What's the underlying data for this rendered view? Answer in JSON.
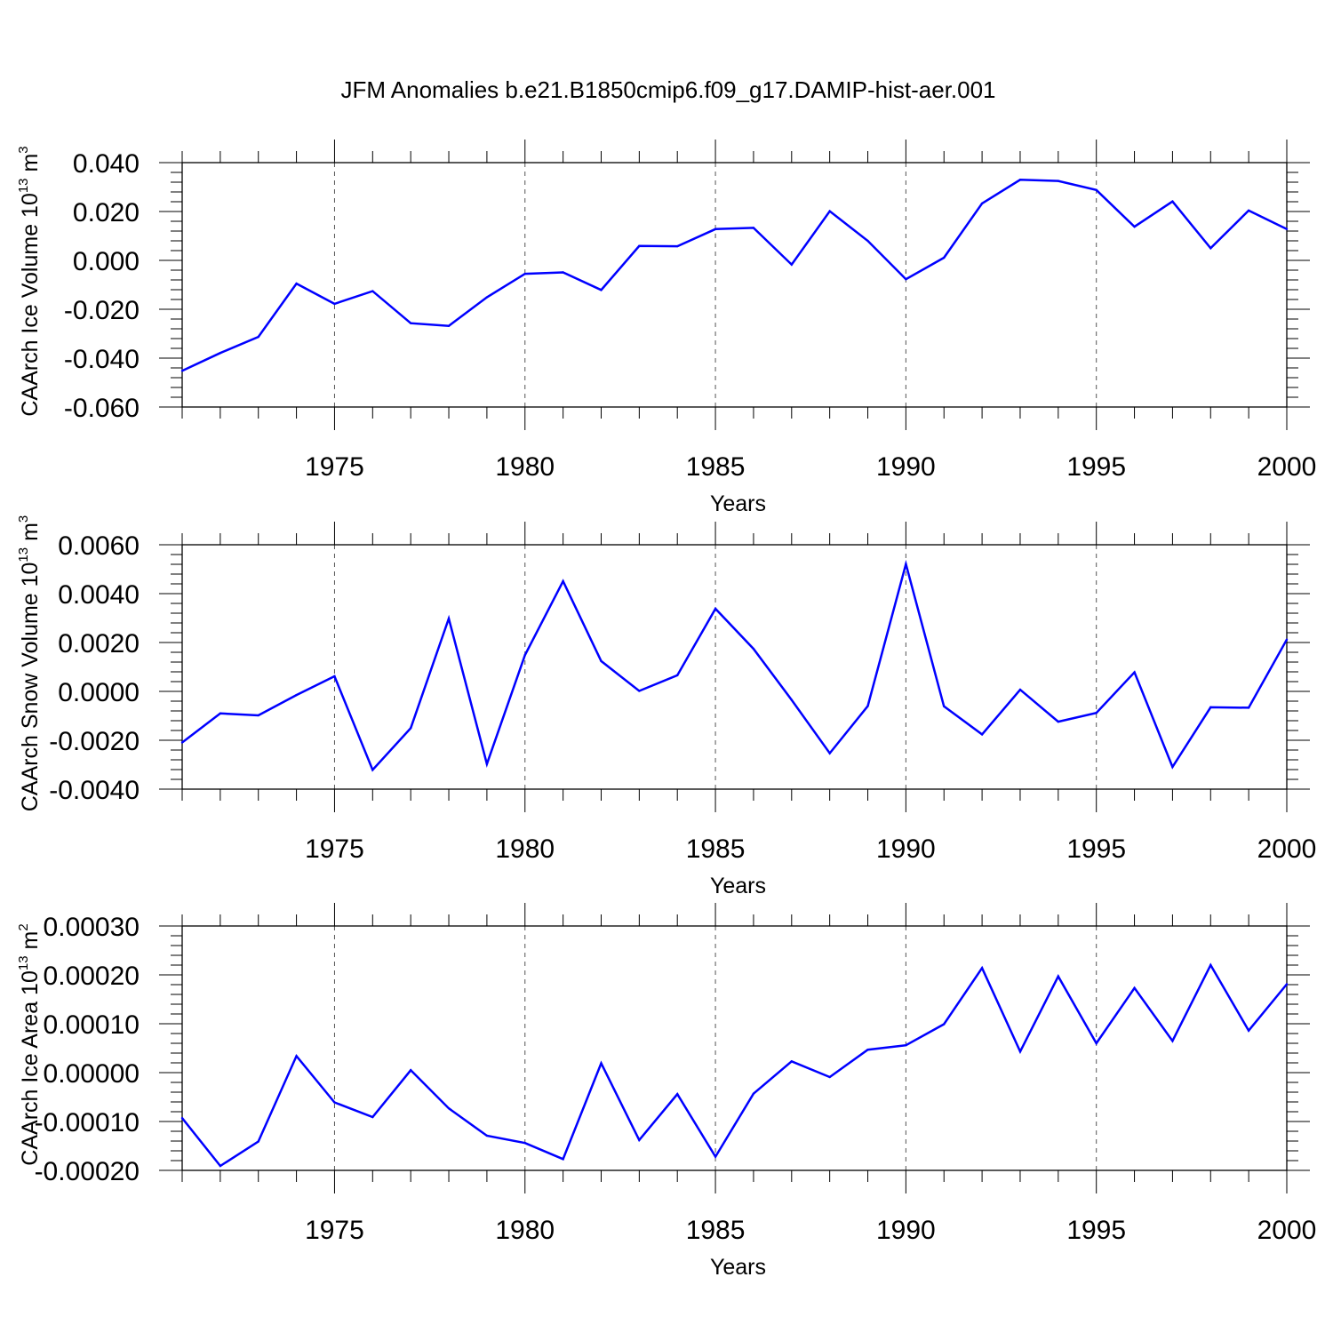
{
  "figure": {
    "title": "JFM Anomalies b.e21.B1850cmip6.f09_g17.DAMIP-hist-aer.001",
    "line_color": "#0000ff",
    "grid_color": "#555555"
  },
  "chart_data": [
    {
      "type": "line",
      "title": "JFM Anomalies b.e21.B1850cmip6.f09_g17.DAMIP-hist-aer.001",
      "xlabel": "Years",
      "ylabel_main": "CAArch Ice Volume 10",
      "ylabel_sup": "13",
      "ylabel_unit": " m",
      "ylabel_unit_sup": "3",
      "xlim": [
        1971,
        2000
      ],
      "ylim": [
        -0.06,
        0.04
      ],
      "x_ticks": [
        1975,
        1980,
        1985,
        1990,
        1995,
        2000
      ],
      "x_tick_labels": [
        "1975",
        "1980",
        "1985",
        "1990",
        "1995",
        "2000"
      ],
      "y_ticks": [
        -0.06,
        -0.04,
        -0.02,
        0.0,
        0.02,
        0.04
      ],
      "y_tick_labels": [
        "-0.060",
        "-0.040",
        "-0.020",
        "0.000",
        "0.020",
        "0.040"
      ],
      "x": [
        1971,
        1972,
        1973,
        1974,
        1975,
        1976,
        1977,
        1978,
        1979,
        1980,
        1981,
        1982,
        1983,
        1984,
        1985,
        1986,
        1987,
        1988,
        1989,
        1990,
        1991,
        1992,
        1993,
        1994,
        1995,
        1996,
        1997,
        1998,
        1999,
        2000
      ],
      "values": [
        -0.0452,
        -0.0379,
        -0.0313,
        -0.0095,
        -0.0178,
        -0.0126,
        -0.0257,
        -0.0268,
        -0.0151,
        -0.0055,
        -0.0049,
        -0.0121,
        0.0059,
        0.0058,
        0.0128,
        0.0133,
        -0.0017,
        0.0201,
        0.008,
        -0.0077,
        0.0011,
        0.0233,
        0.033,
        0.0325,
        0.0288,
        0.0138,
        0.0241,
        0.005,
        0.0204,
        0.0128
      ],
      "series_name": "CAArch Ice Volume"
    },
    {
      "type": "line",
      "xlabel": "Years",
      "ylabel_main": "CAArch Snow Volume 10",
      "ylabel_sup": "13",
      "ylabel_unit": " m",
      "ylabel_unit_sup": "3",
      "xlim": [
        1971,
        2000
      ],
      "ylim": [
        -0.004,
        0.006
      ],
      "x_ticks": [
        1975,
        1980,
        1985,
        1990,
        1995,
        2000
      ],
      "x_tick_labels": [
        "1975",
        "1980",
        "1985",
        "1990",
        "1995",
        "2000"
      ],
      "y_ticks": [
        -0.004,
        -0.002,
        0.0,
        0.002,
        0.004,
        0.006
      ],
      "y_tick_labels": [
        "-0.0040",
        "-0.0020",
        "0.0000",
        "0.0020",
        "0.0040",
        "0.0060"
      ],
      "x": [
        1971,
        1972,
        1973,
        1974,
        1975,
        1976,
        1977,
        1978,
        1979,
        1980,
        1981,
        1982,
        1983,
        1984,
        1985,
        1986,
        1987,
        1988,
        1989,
        1990,
        1991,
        1992,
        1993,
        1994,
        1995,
        1996,
        1997,
        1998,
        1999,
        2000
      ],
      "values": [
        -0.00209,
        -0.0009,
        -0.00098,
        -0.00015,
        0.00062,
        -0.00321,
        -0.0015,
        0.00298,
        -0.00297,
        0.00149,
        0.00451,
        0.00124,
        2e-05,
        0.00066,
        0.00338,
        0.00174,
        -0.00035,
        -0.00253,
        -0.0006,
        0.00521,
        -0.00061,
        -0.00176,
        7e-05,
        -0.00124,
        -0.00088,
        0.00078,
        -0.00309,
        -0.00065,
        -0.00067,
        0.00212
      ],
      "series_name": "CAArch Snow Volume"
    },
    {
      "type": "line",
      "xlabel": "Years",
      "ylabel_main": "CAArch Ice Area 10",
      "ylabel_sup": "13",
      "ylabel_unit": " m",
      "ylabel_unit_sup": "2",
      "xlim": [
        1971,
        2000
      ],
      "ylim": [
        -0.0002,
        0.0003
      ],
      "x_ticks": [
        1975,
        1980,
        1985,
        1990,
        1995,
        2000
      ],
      "x_tick_labels": [
        "1975",
        "1980",
        "1985",
        "1990",
        "1995",
        "2000"
      ],
      "y_ticks": [
        -0.0002,
        -0.0001,
        0.0,
        0.0001,
        0.0002,
        0.0003
      ],
      "y_tick_labels": [
        "-0.00020",
        "-0.00010",
        "0.00000",
        "0.00010",
        "0.00020",
        "0.00030"
      ],
      "x": [
        1971,
        1972,
        1973,
        1974,
        1975,
        1976,
        1977,
        1978,
        1979,
        1980,
        1981,
        1982,
        1983,
        1984,
        1985,
        1986,
        1987,
        1988,
        1989,
        1990,
        1991,
        1992,
        1993,
        1994,
        1995,
        1996,
        1997,
        1998,
        1999,
        2000
      ],
      "values": [
        -9.3e-05,
        -0.000191,
        -0.000141,
        3.4e-05,
        -6.1e-05,
        -9.1e-05,
        5e-06,
        -7.3e-05,
        -0.000129,
        -0.000144,
        -0.000177,
        1.9e-05,
        -0.000138,
        -4.4e-05,
        -0.000172,
        -4.3e-05,
        2.3e-05,
        -9e-06,
        4.7e-05,
        5.6e-05,
        9.9e-05,
        0.000214,
        4.3e-05,
        0.000197,
        6e-05,
        0.000173,
        6.5e-05,
        0.00022,
        8.6e-05,
        0.000181
      ],
      "series_name": "CAArch Ice Area"
    }
  ]
}
